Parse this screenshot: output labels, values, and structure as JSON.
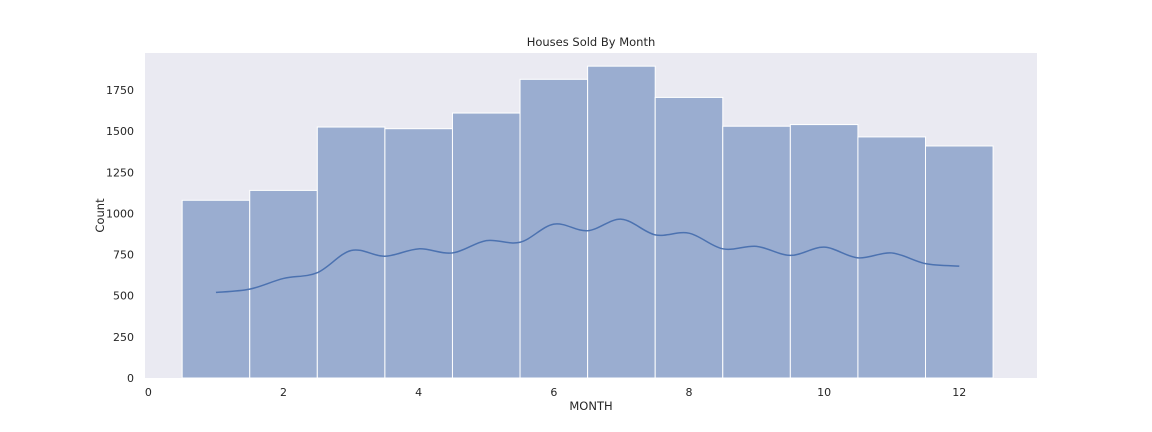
{
  "chart_data": {
    "type": "bar",
    "title": "Houses Sold By Month",
    "xlabel": "MONTH",
    "ylabel": "Count",
    "xlim": [
      -0.05,
      13.15
    ],
    "ylim": [
      0,
      1975
    ],
    "xticks": [
      0,
      2,
      4,
      6,
      8,
      10,
      12
    ],
    "yticks": [
      0,
      250,
      500,
      750,
      1000,
      1250,
      1500,
      1750
    ],
    "categories": [
      1,
      2,
      3,
      4,
      5,
      6,
      7,
      8,
      9,
      10,
      11,
      12
    ],
    "values": [
      1080,
      1140,
      1525,
      1515,
      1610,
      1815,
      1895,
      1705,
      1530,
      1540,
      1465,
      1410
    ],
    "bin_width": 1,
    "grid": false,
    "series": [
      {
        "type": "line",
        "x": [
          1.0,
          1.5,
          2.0,
          2.5,
          3.0,
          3.5,
          4.0,
          4.5,
          5.0,
          5.5,
          6.0,
          6.5,
          7.0,
          7.5,
          8.0,
          8.5,
          9.0,
          9.5,
          10.0,
          10.5,
          11.0,
          11.5,
          12.0
        ],
        "y": [
          520,
          540,
          605,
          640,
          775,
          740,
          785,
          760,
          835,
          825,
          935,
          895,
          965,
          870,
          880,
          785,
          800,
          745,
          795,
          730,
          760,
          695,
          680
        ]
      }
    ],
    "colors": {
      "bars": "#9aadd0",
      "kde_line": "#4c72b0",
      "plot_background": "#eaeaf2"
    }
  }
}
